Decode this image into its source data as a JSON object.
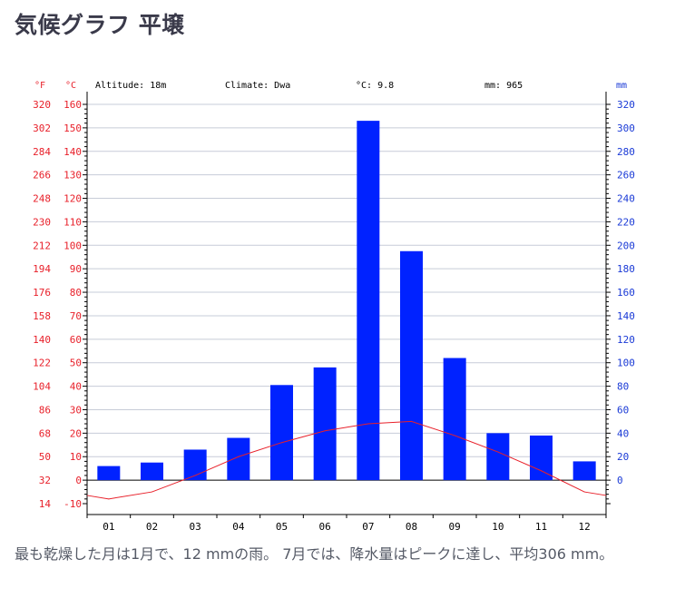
{
  "title": "気候グラフ 平壌",
  "caption": "最も乾燥した月は1月で、12 mmの雨。 7月では、降水量はピークに達し、平均306 mm。",
  "colors": {
    "temperature": "#e8202a",
    "precipitation": "#0022ff",
    "precip_axis": "#1a3ad6",
    "grid": "#c7ccd8",
    "text": "#000000"
  },
  "chart_data": {
    "type": "bar",
    "header": {
      "altitude": "Altitude: 18m",
      "climate": "Climate: Dwa",
      "mean_temp": "°C: 9.8",
      "precip_total": "mm: 965"
    },
    "unit_labels": {
      "fahrenheit": "°F",
      "celsius": "°C",
      "precip": "mm"
    },
    "categories": [
      "01",
      "02",
      "03",
      "04",
      "05",
      "06",
      "07",
      "08",
      "09",
      "10",
      "11",
      "12"
    ],
    "celsius_ticks": [
      160,
      150,
      140,
      130,
      120,
      110,
      100,
      90,
      80,
      70,
      60,
      50,
      40,
      30,
      20,
      10,
      0,
      -10
    ],
    "fahrenheit_ticks": [
      320,
      302,
      284,
      266,
      248,
      230,
      212,
      194,
      176,
      158,
      140,
      122,
      104,
      86,
      68,
      50,
      32,
      14
    ],
    "precip_ticks": [
      320,
      300,
      280,
      260,
      240,
      220,
      200,
      180,
      160,
      140,
      120,
      100,
      80,
      60,
      40,
      20,
      0
    ],
    "ylim_celsius": [
      -10,
      160
    ],
    "ylim_precip": [
      -20,
      320
    ],
    "series": [
      {
        "kind": "bar",
        "axis": "precip",
        "values": [
          12,
          15,
          26,
          36,
          81,
          96,
          306,
          195,
          104,
          40,
          38,
          16
        ]
      },
      {
        "kind": "line",
        "axis": "celsius",
        "values": [
          -8,
          -5,
          2,
          10,
          16,
          21,
          24,
          25,
          19,
          12,
          4,
          -5
        ]
      }
    ],
    "grid": true
  }
}
